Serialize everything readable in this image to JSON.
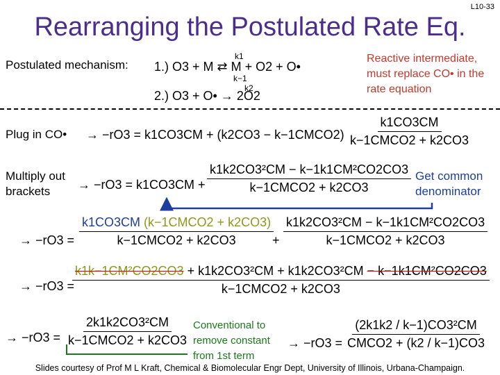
{
  "slide_number": "L10-33",
  "title": "Rearranging the Postulated Rate Eq.",
  "mechanism": {
    "label": "Postulated mechanism:",
    "step1": "1.) O3 + M ⇄ M + O2 + O•",
    "k1": "k1",
    "k_minus1": "k−1",
    "step2": "2.) O3 + O• → 2O2",
    "k2": "k2"
  },
  "note_intermediate": {
    "line1": "Reactive intermediate,",
    "line2": "must replace CO• in the",
    "line3": "rate equation"
  },
  "plug_in": {
    "label": "Plug in CO•",
    "lhs": "→ −rO3 = k1CO3CM + (k2CO3 − k−1CMCO2)",
    "num": "k1CO3CM",
    "den": "k−1CMCO2 + k2CO3"
  },
  "multiply": {
    "label_line1": "Multiply out",
    "label_line2": "brackets",
    "lhs": "→ −rO3 = k1CO3CM +",
    "num": "k1k2CO3²CM − k−1k1CM²CO2CO3",
    "den": "k−1CMCO2 + k2CO3"
  },
  "common_denominator": {
    "line1": "Get common",
    "line2": "denominator"
  },
  "step3": {
    "lhs": "→ −rO3 =",
    "num_a": "k1CO3CM",
    "num_b": "(k−1CMCO2 + k2CO3)",
    "den_a": "k−1CMCO2 + k2CO3",
    "plus": "+",
    "num_c": "k1k2CO3²CM − k−1k1CM²CO2CO3",
    "den_c": "k−1CMCO2 + k2CO3"
  },
  "step4": {
    "lhs": "→ −rO3 =",
    "num_strike1": "k1k−1CM²CO2CO3",
    "num_mid": "+ k1k2CO3²CM + k1k2CO3²CM",
    "num_strike2": "− k−1k1CM²CO2CO3",
    "den": "k−1CMCO2 + k2CO3"
  },
  "step5": {
    "lhs": "→ −rO3 =",
    "num": "2k1k2CO3²CM",
    "den": "k−1CMCO2 + k2CO3"
  },
  "conventional": {
    "line1": "Conventional to",
    "line2": "remove constant",
    "line3": "from 1st term"
  },
  "step6": {
    "lhs": "→ −rO3 =",
    "num": "(2k1k2 / k−1)CO3²CM",
    "den": "CMCO2 + (k2 / k−1)CO3"
  },
  "footer": "Slides courtesy of Prof M L Kraft, Chemical & Biomolecular Engr Dept, University of Illinois, Urbana-Champaign."
}
